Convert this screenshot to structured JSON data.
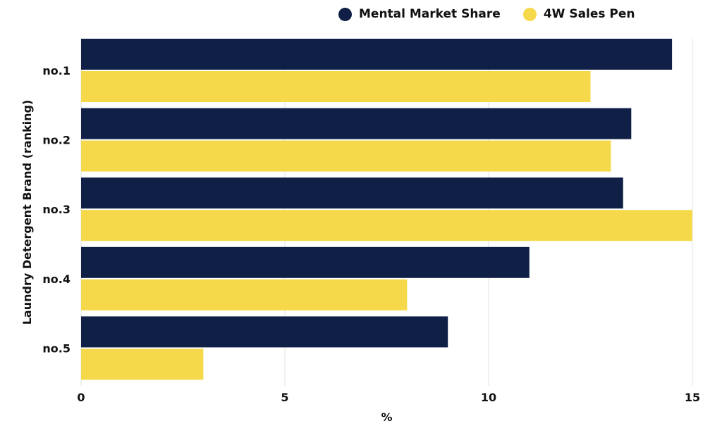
{
  "chart_data": {
    "type": "bar",
    "orientation": "horizontal",
    "categories": [
      "no.1",
      "no.2",
      "no.3",
      "no.4",
      "no.5"
    ],
    "series": [
      {
        "name": "Mental Market Share",
        "color": "#0f1f45",
        "values": [
          14.5,
          13.5,
          13.3,
          11.0,
          9.0
        ]
      },
      {
        "name": "4W Sales Pen",
        "color": "#f5d94a",
        "values": [
          12.5,
          13.0,
          15.0,
          8.0,
          3.0
        ]
      }
    ],
    "xlabel": "%",
    "ylabel": "Laundry Detergent Brand (ranking)",
    "xlim": [
      0,
      15
    ],
    "xticks": [
      0,
      5,
      10,
      15
    ],
    "grid": "vertical",
    "legend": "top"
  }
}
